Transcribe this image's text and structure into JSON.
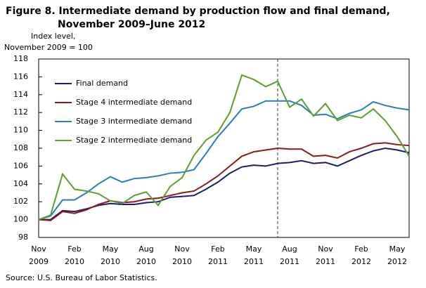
{
  "chart_data": {
    "type": "line",
    "title": [
      "Figure 8. Intermediate demand by production flow and final demand,",
      "November 2009–June 2012"
    ],
    "y_label": [
      "Index level,",
      "November 2009 = 100"
    ],
    "source": "Source: U.S. Bureau of Labor Statistics.",
    "categories": [
      "Nov 2009",
      null,
      null,
      "Feb 2010",
      null,
      null,
      "May 2010",
      null,
      null,
      "Aug 2010",
      null,
      null,
      "Nov 2010",
      null,
      null,
      "Feb 2011",
      null,
      null,
      "May 2011",
      null,
      null,
      "Aug 2011",
      null,
      null,
      "Nov 2011",
      null,
      null,
      "Feb 2012",
      null,
      null,
      "May 2012",
      null
    ],
    "ylim": [
      98,
      118
    ],
    "yticks": [
      98,
      100,
      102,
      104,
      106,
      108,
      110,
      112,
      114,
      116,
      118
    ],
    "legend": "upper left",
    "series": [
      {
        "name": "Final demand",
        "color": "#1b1b7a",
        "values": [
          100,
          100,
          101,
          100.9,
          101.2,
          101.6,
          101.8,
          101.7,
          101.7,
          101.9,
          102,
          102.5,
          102.6,
          102.7,
          103.4,
          104.2,
          105.2,
          105.9,
          106.1,
          106,
          106.3,
          106.4,
          106.6,
          106.3,
          106.4,
          106,
          106.6,
          107.2,
          107.7,
          108,
          107.8,
          107.5
        ]
      },
      {
        "name": "Stage 4 intermediate demand",
        "color": "#8b1a1a",
        "values": [
          100,
          99.9,
          100.9,
          100.7,
          101.1,
          101.7,
          102.1,
          101.9,
          102,
          102.3,
          102.4,
          102.7,
          103,
          103.2,
          104,
          104.9,
          106,
          107.1,
          107.6,
          107.8,
          108,
          107.9,
          107.9,
          107.1,
          107.2,
          106.9,
          107.6,
          108,
          108.5,
          108.6,
          108.4,
          108.3
        ]
      },
      {
        "name": "Stage 3 intermediate demand",
        "color": "#2a7ac4",
        "values": [
          100,
          100.4,
          102.2,
          102.2,
          103,
          104,
          104.8,
          104.2,
          104.6,
          104.7,
          104.9,
          105.2,
          105.3,
          105.6,
          107.4,
          109.3,
          110.8,
          112.4,
          112.7,
          113.3,
          113.3,
          113.3,
          112.8,
          111.7,
          111.8,
          111.3,
          111.9,
          112.3,
          113.2,
          112.8,
          112.5,
          112.3
        ]
      },
      {
        "name": "Stage 2 intermediate demand",
        "color": "#5aa02c",
        "values": [
          100,
          100.5,
          105.1,
          103.4,
          103.2,
          102.9,
          102.1,
          101.8,
          102.7,
          103.1,
          101.6,
          103.7,
          104.7,
          107.2,
          108.9,
          109.8,
          112,
          116.2,
          115.7,
          114.9,
          115.5,
          112.6,
          113.5,
          111.6,
          113,
          111.1,
          111.7,
          111.4,
          112.4,
          111.1,
          109.3,
          107.1
        ]
      }
    ]
  }
}
